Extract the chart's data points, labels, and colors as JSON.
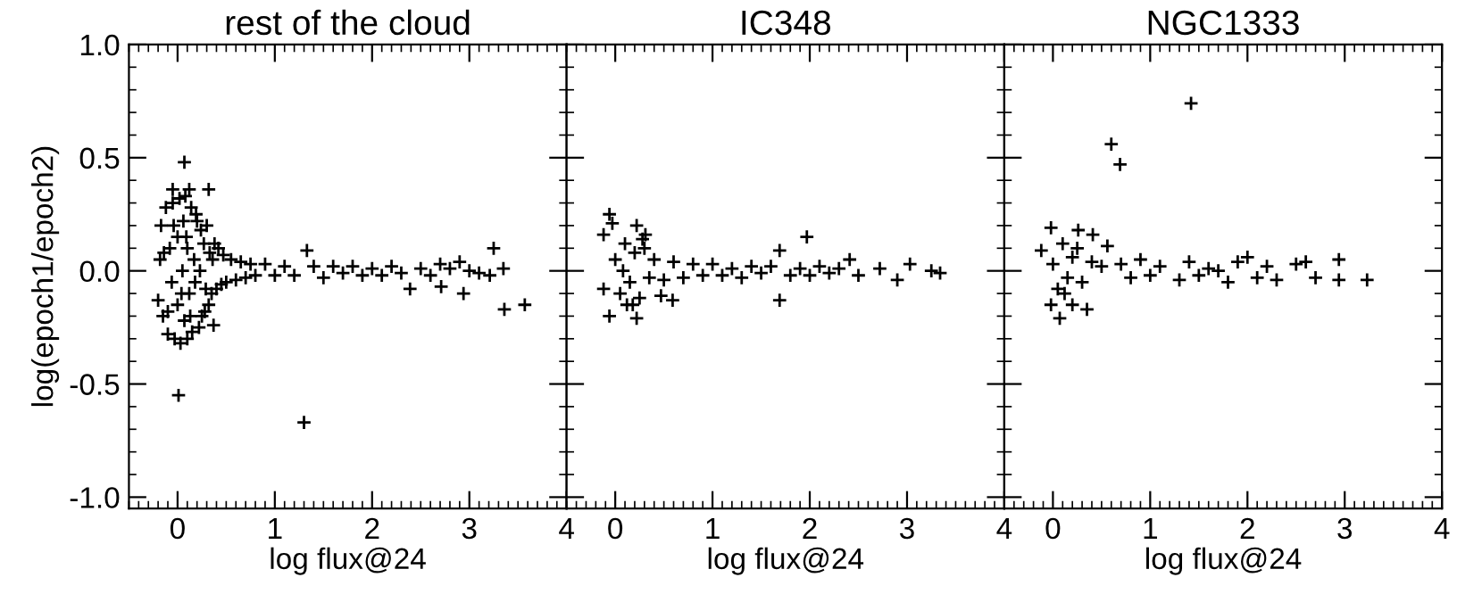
{
  "chart_data": [
    {
      "type": "scatter",
      "title": "rest of the cloud",
      "xlabel": "log flux@24",
      "ylabel": "log(epoch1/epoch2)",
      "color": "#000000",
      "marker": "cross",
      "xlim": [
        -0.5,
        4
      ],
      "ylim": [
        -1.05,
        1.0
      ],
      "xticks": [
        0,
        1,
        2,
        3,
        4
      ],
      "yticks": [
        {
          "value": -1.0,
          "label": "-1.0"
        },
        {
          "value": -0.5,
          "label": "-0.5"
        },
        {
          "value": 0.0,
          "label": "0.0"
        },
        {
          "value": 0.5,
          "label": "0.5"
        },
        {
          "value": 1.0,
          "label": "1.0"
        }
      ],
      "x": [
        0.07,
        -0.05,
        0.12,
        0.32,
        0.01,
        1.3,
        1.33,
        3.25,
        3.36,
        3.57,
        2.94,
        2.39,
        2.71,
        2.9,
        3.35,
        3.21,
        -0.2,
        -0.18,
        -0.17,
        -0.15,
        -0.12,
        -0.1,
        -0.08,
        -0.06,
        -0.05,
        -0.03,
        0.0,
        0.0,
        0.02,
        0.03,
        0.05,
        0.06,
        0.07,
        0.08,
        0.1,
        0.1,
        0.12,
        0.14,
        0.15,
        0.17,
        0.18,
        0.2,
        0.22,
        0.24,
        0.25,
        0.27,
        0.28,
        0.3,
        0.32,
        0.33,
        0.35,
        0.37,
        0.38,
        0.4,
        0.42,
        0.45,
        0.47,
        0.5,
        0.55,
        0.6,
        0.65,
        0.7,
        0.75,
        0.8,
        0.9,
        1.0,
        1.1,
        1.2,
        1.4,
        1.5,
        1.6,
        1.7,
        1.8,
        1.9,
        2.0,
        2.1,
        2.2,
        2.3,
        2.5,
        2.6,
        2.7,
        2.8,
        3.0,
        3.1,
        -0.14,
        -0.1,
        -0.04,
        0.04,
        0.09,
        0.13,
        0.19,
        0.23,
        0.29,
        0.36
      ],
      "values": [
        0.48,
        0.36,
        0.36,
        0.36,
        -0.55,
        -0.67,
        0.09,
        0.1,
        -0.17,
        -0.15,
        -0.1,
        -0.08,
        -0.07,
        0.04,
        0.01,
        -0.02,
        -0.13,
        0.05,
        0.2,
        -0.2,
        0.28,
        -0.28,
        0.1,
        -0.05,
        0.3,
        -0.3,
        0.15,
        -0.15,
        0.32,
        -0.32,
        0.0,
        0.22,
        -0.22,
        0.33,
        -0.3,
        0.1,
        -0.1,
        0.28,
        -0.27,
        0.05,
        -0.05,
        0.22,
        -0.25,
        0.18,
        -0.2,
        0.12,
        -0.18,
        0.2,
        -0.15,
        0.08,
        -0.1,
        -0.24,
        0.12,
        -0.08,
        0.1,
        -0.06,
        0.07,
        -0.05,
        0.05,
        -0.04,
        0.04,
        -0.03,
        0.03,
        -0.02,
        0.03,
        -0.02,
        0.02,
        -0.02,
        0.02,
        -0.03,
        0.02,
        -0.01,
        0.02,
        -0.02,
        0.01,
        -0.02,
        0.02,
        -0.01,
        0.01,
        -0.02,
        0.03,
        0.01,
        0.0,
        -0.01,
        0.08,
        -0.18,
        0.2,
        -0.1,
        0.15,
        -0.2,
        0.25,
        0.0,
        -0.08,
        0.05
      ]
    },
    {
      "type": "scatter",
      "title": "IC348",
      "xlabel": "log flux@24",
      "color": "#000000",
      "marker": "cross",
      "tick_labels": "x",
      "xlim": [
        -0.5,
        4
      ],
      "ylim": [
        -1.05,
        1.0
      ],
      "xticks": [
        0,
        1,
        2,
        3,
        4
      ],
      "yticks": [
        {
          "value": -1.0,
          "label": null
        },
        {
          "value": -0.5,
          "label": null
        },
        {
          "value": 0.0,
          "label": null
        },
        {
          "value": 0.5,
          "label": null
        },
        {
          "value": 1.0,
          "label": null
        }
      ],
      "x": [
        1.97,
        1.69,
        1.69,
        3.03,
        2.9,
        3.25,
        3.34,
        2.72,
        2.41,
        -0.06,
        -0.03,
        -0.12,
        0.22,
        0.31,
        -0.06,
        0.22,
        0.12,
        -0.12,
        0.59,
        0.47,
        0.0,
        0.05,
        0.1,
        0.15,
        0.2,
        0.25,
        0.3,
        0.35,
        0.4,
        0.08,
        0.18,
        0.28,
        0.5,
        0.6,
        0.7,
        0.8,
        0.9,
        1.0,
        1.1,
        1.2,
        1.3,
        1.4,
        1.5,
        1.6,
        1.8,
        1.9,
        2.0,
        2.1,
        2.2,
        2.3,
        2.5
      ],
      "values": [
        0.15,
        0.09,
        -0.13,
        0.03,
        -0.04,
        0.0,
        -0.01,
        0.01,
        0.05,
        0.25,
        0.21,
        0.16,
        0.2,
        0.16,
        -0.2,
        -0.21,
        -0.15,
        -0.08,
        -0.13,
        -0.11,
        0.05,
        -0.1,
        0.12,
        -0.05,
        0.08,
        -0.12,
        0.1,
        -0.03,
        0.05,
        0.0,
        -0.15,
        0.14,
        -0.04,
        0.04,
        -0.03,
        0.03,
        -0.02,
        0.03,
        -0.02,
        0.01,
        -0.03,
        0.02,
        -0.01,
        0.02,
        -0.02,
        0.01,
        -0.02,
        0.02,
        -0.01,
        0.01,
        -0.02
      ]
    },
    {
      "type": "scatter",
      "title": "NGC1333",
      "xlabel": "log flux@24",
      "color": "#000000",
      "marker": "cross",
      "tick_labels": "x",
      "xlim": [
        -0.5,
        4
      ],
      "ylim": [
        -1.05,
        1.0
      ],
      "xticks": [
        0,
        1,
        2,
        3,
        4
      ],
      "yticks": [
        {
          "value": -1.0,
          "label": null
        },
        {
          "value": -0.5,
          "label": null
        },
        {
          "value": 0.0,
          "label": null
        },
        {
          "value": 0.5,
          "label": null
        },
        {
          "value": 1.0,
          "label": null
        }
      ],
      "x": [
        1.42,
        0.6,
        0.69,
        3.23,
        2.94,
        2.94,
        -0.02,
        -0.12,
        0.07,
        -0.02,
        0.35,
        0.56,
        0.41,
        0.26,
        0.2,
        0.0,
        0.05,
        0.1,
        0.15,
        0.2,
        0.3,
        0.4,
        0.5,
        0.12,
        0.25,
        0.7,
        0.8,
        0.9,
        1.0,
        1.1,
        1.3,
        1.4,
        1.5,
        1.6,
        1.7,
        1.8,
        1.9,
        2.0,
        2.1,
        2.2,
        2.3,
        2.5,
        2.6,
        2.7
      ],
      "values": [
        0.74,
        0.56,
        0.47,
        -0.04,
        0.05,
        -0.04,
        0.19,
        0.09,
        -0.21,
        -0.15,
        -0.17,
        0.11,
        0.16,
        0.18,
        -0.15,
        0.03,
        -0.08,
        0.12,
        -0.03,
        0.06,
        -0.05,
        0.04,
        0.02,
        -0.1,
        0.1,
        0.03,
        -0.03,
        0.05,
        -0.02,
        0.02,
        -0.04,
        0.04,
        -0.02,
        0.01,
        0.0,
        -0.05,
        0.04,
        0.06,
        -0.03,
        0.02,
        -0.04,
        0.03,
        0.04,
        -0.03
      ]
    }
  ]
}
